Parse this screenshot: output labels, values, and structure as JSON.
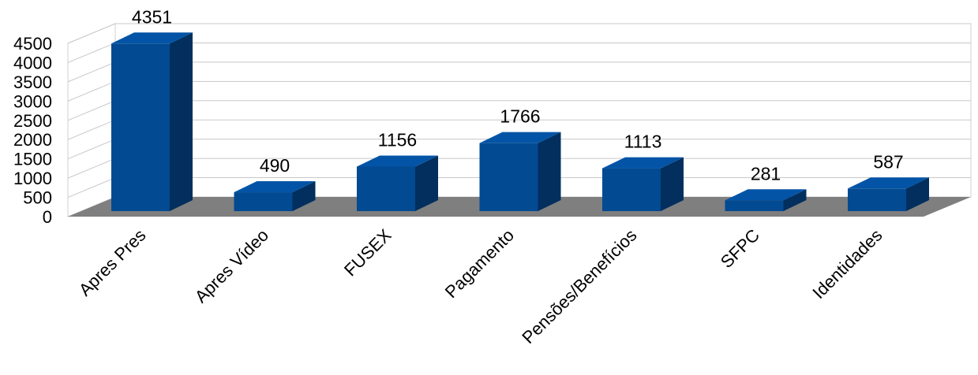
{
  "chart_data": {
    "type": "bar",
    "title": "",
    "xlabel": "",
    "ylabel": "",
    "categories": [
      "Apres Pres",
      "Apres Vídeo",
      "FUSEX",
      "Pagamento",
      "Pensões/Benefícios",
      "SFPC",
      "Identidades"
    ],
    "values": [
      4351,
      490,
      1156,
      1766,
      1113,
      281,
      587
    ],
    "data_labels": [
      "4351",
      "490",
      "1156",
      "1766",
      "1113",
      "281",
      "587"
    ],
    "ylim": [
      0,
      4500
    ],
    "y_ticks": [
      "0",
      "500",
      "1000",
      "1500",
      "2000",
      "2500",
      "3000",
      "3500",
      "4000",
      "4500"
    ],
    "grid": true,
    "style": "3d-column",
    "colors": {
      "bar_front": "#024A91",
      "bar_side": "#022F5E",
      "bar_top": "#0354A6",
      "floor": "#7F7F7F",
      "gridline": "#C8C8C8"
    }
  }
}
